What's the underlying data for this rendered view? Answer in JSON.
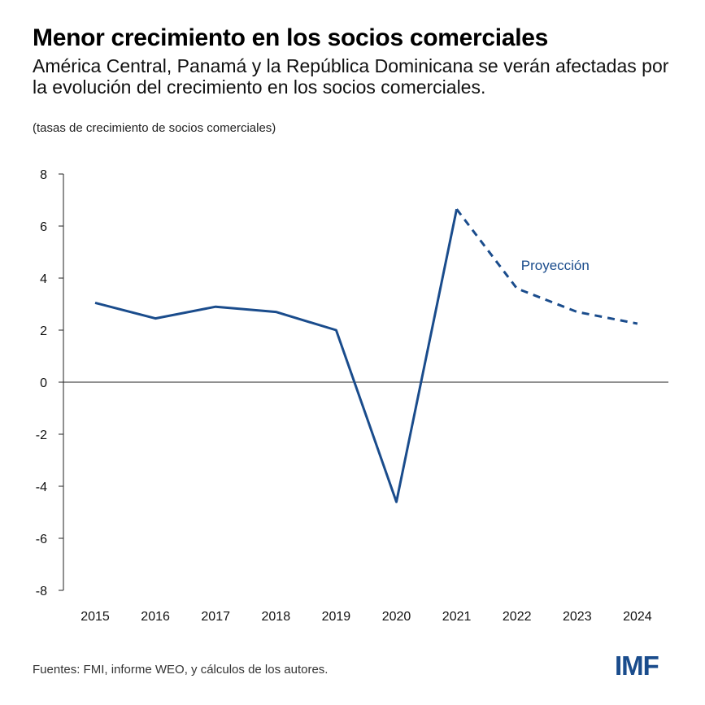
{
  "header": {
    "title": "Menor crecimiento en los socios comerciales",
    "subtitle": "América Central, Panamá y la República Dominicana se verán afectadas por la evolución del crecimiento en los socios comerciales.",
    "units": "(tasas de crecimiento de socios comerciales)"
  },
  "footer": {
    "source": "Fuentes: FMI, informe WEO, y cálculos de los autores.",
    "logo_text": "IMF"
  },
  "colors": {
    "line": "#1a4c8c",
    "axis": "#222222",
    "logo": "#1a4c8c"
  },
  "chart_data": {
    "type": "line",
    "title": "Menor crecimiento en los socios comerciales",
    "categories": [
      "2015",
      "2016",
      "2017",
      "2018",
      "2019",
      "2020",
      "2021",
      "2022",
      "2023",
      "2024"
    ],
    "series": [
      {
        "values": [
          3.05,
          2.45,
          2.9,
          2.7,
          2.0,
          -4.6,
          6.65,
          null,
          null,
          null
        ],
        "style": "solid"
      },
      {
        "values": [
          null,
          null,
          null,
          null,
          null,
          null,
          6.65,
          3.6,
          2.7,
          2.25
        ],
        "style": "dashed"
      }
    ],
    "annotations": [
      {
        "text": "Proyección",
        "x": "2023",
        "y": 4.5
      }
    ],
    "yticks": [
      "8",
      "6",
      "4",
      "2",
      "0",
      "-2",
      "-4",
      "-6",
      "-8"
    ],
    "ylim": [
      -8,
      8
    ],
    "grid": false,
    "legend": "none"
  }
}
